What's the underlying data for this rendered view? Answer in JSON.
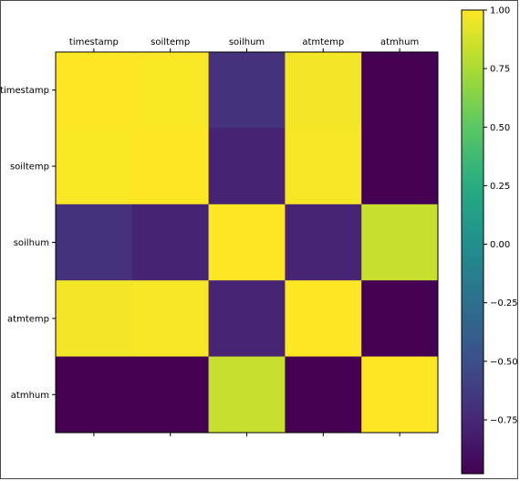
{
  "chart_data": {
    "type": "heatmap",
    "row_labels": [
      "timestamp",
      "soiltemp",
      "soilhum",
      "atmtemp",
      "atmhum"
    ],
    "col_labels": [
      "timestamp",
      "soiltemp",
      "soilhum",
      "atmtemp",
      "atmhum"
    ],
    "values": [
      [
        1.0,
        0.99,
        -0.7,
        0.97,
        -0.98
      ],
      [
        0.99,
        1.0,
        -0.78,
        0.98,
        -0.98
      ],
      [
        -0.7,
        -0.78,
        1.0,
        -0.77,
        0.84
      ],
      [
        0.97,
        0.98,
        -0.77,
        1.0,
        -0.99
      ],
      [
        -0.98,
        -0.98,
        0.84,
        -0.99,
        1.0
      ]
    ],
    "colormap": "viridis",
    "vmin": -0.98,
    "vmax": 1.0,
    "colorbar": {
      "ticks": [
        1.0,
        0.75,
        0.5,
        0.25,
        0.0,
        -0.25,
        -0.5,
        -0.75
      ],
      "tick_labels": [
        "1.00",
        "0.75",
        "0.50",
        "0.25",
        "0.00",
        "−0.25",
        "−0.50",
        "−0.75"
      ]
    },
    "x_tick_position": "top",
    "grid": false,
    "title": "",
    "xlabel": "",
    "ylabel": ""
  }
}
